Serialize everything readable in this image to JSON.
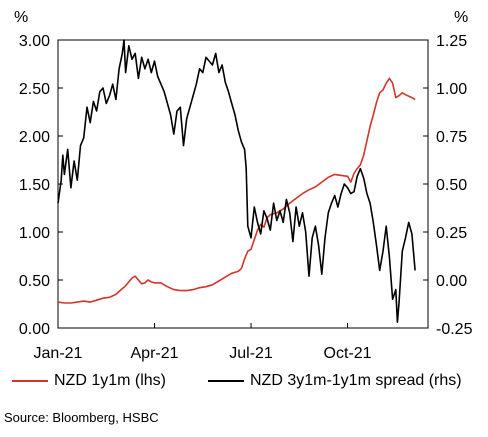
{
  "chart_data": {
    "type": "line",
    "title": "",
    "left_axis": {
      "unit": "%",
      "ylim": [
        0,
        3
      ],
      "ticks": [
        "0.00",
        "0.50",
        "1.00",
        "1.50",
        "2.00",
        "2.50",
        "3.00"
      ]
    },
    "right_axis": {
      "unit": "%",
      "ylim": [
        -0.25,
        1.25
      ],
      "ticks": [
        "-0.25",
        "0.00",
        "0.25",
        "0.50",
        "0.75",
        "1.00",
        "1.25"
      ]
    },
    "x_axis": {
      "range": [
        0,
        11.5
      ],
      "ticks": [
        {
          "label": "Jan-21",
          "pos": 0
        },
        {
          "label": "Apr-21",
          "pos": 3
        },
        {
          "label": "Jul-21",
          "pos": 6
        },
        {
          "label": "Oct-21",
          "pos": 9
        }
      ]
    },
    "grid": false,
    "legend_position": "bottom",
    "series": [
      {
        "name": "NZD 1y1m  (lhs)",
        "axis": "left",
        "color": "#d2362a",
        "points": [
          [
            0.0,
            0.27
          ],
          [
            0.2,
            0.26
          ],
          [
            0.4,
            0.26
          ],
          [
            0.6,
            0.27
          ],
          [
            0.8,
            0.28
          ],
          [
            1.0,
            0.27
          ],
          [
            1.2,
            0.29
          ],
          [
            1.4,
            0.31
          ],
          [
            1.6,
            0.32
          ],
          [
            1.8,
            0.35
          ],
          [
            2.0,
            0.41
          ],
          [
            2.1,
            0.44
          ],
          [
            2.2,
            0.48
          ],
          [
            2.3,
            0.52
          ],
          [
            2.4,
            0.54
          ],
          [
            2.5,
            0.5
          ],
          [
            2.6,
            0.46
          ],
          [
            2.7,
            0.47
          ],
          [
            2.8,
            0.5
          ],
          [
            2.9,
            0.48
          ],
          [
            3.0,
            0.47
          ],
          [
            3.2,
            0.47
          ],
          [
            3.4,
            0.43
          ],
          [
            3.6,
            0.4
          ],
          [
            3.8,
            0.39
          ],
          [
            4.0,
            0.39
          ],
          [
            4.2,
            0.4
          ],
          [
            4.4,
            0.42
          ],
          [
            4.6,
            0.43
          ],
          [
            4.8,
            0.45
          ],
          [
            5.0,
            0.49
          ],
          [
            5.2,
            0.53
          ],
          [
            5.4,
            0.57
          ],
          [
            5.6,
            0.59
          ],
          [
            5.7,
            0.62
          ],
          [
            5.8,
            0.72
          ],
          [
            5.9,
            0.8
          ],
          [
            6.0,
            0.82
          ],
          [
            6.1,
            0.92
          ],
          [
            6.2,
            1.02
          ],
          [
            6.3,
            1.08
          ],
          [
            6.4,
            1.05
          ],
          [
            6.5,
            1.15
          ],
          [
            6.6,
            1.18
          ],
          [
            6.8,
            1.2
          ],
          [
            7.0,
            1.24
          ],
          [
            7.2,
            1.3
          ],
          [
            7.4,
            1.35
          ],
          [
            7.6,
            1.4
          ],
          [
            7.8,
            1.44
          ],
          [
            8.0,
            1.47
          ],
          [
            8.2,
            1.52
          ],
          [
            8.4,
            1.57
          ],
          [
            8.6,
            1.6
          ],
          [
            8.8,
            1.59
          ],
          [
            9.0,
            1.58
          ],
          [
            9.1,
            1.52
          ],
          [
            9.2,
            1.61
          ],
          [
            9.3,
            1.66
          ],
          [
            9.4,
            1.7
          ],
          [
            9.5,
            1.8
          ],
          [
            9.6,
            1.95
          ],
          [
            9.7,
            2.1
          ],
          [
            9.8,
            2.22
          ],
          [
            9.9,
            2.35
          ],
          [
            10.0,
            2.45
          ],
          [
            10.1,
            2.48
          ],
          [
            10.2,
            2.55
          ],
          [
            10.3,
            2.6
          ],
          [
            10.4,
            2.55
          ],
          [
            10.5,
            2.4
          ],
          [
            10.6,
            2.42
          ],
          [
            10.7,
            2.45
          ],
          [
            10.8,
            2.43
          ],
          [
            11.0,
            2.4
          ],
          [
            11.1,
            2.38
          ]
        ]
      },
      {
        "name": "NZD 3y1m-1y1m spread (rhs)",
        "axis": "right",
        "color": "#000000",
        "points": [
          [
            0.0,
            0.4
          ],
          [
            0.1,
            0.52
          ],
          [
            0.15,
            0.65
          ],
          [
            0.2,
            0.55
          ],
          [
            0.3,
            0.68
          ],
          [
            0.4,
            0.48
          ],
          [
            0.5,
            0.62
          ],
          [
            0.6,
            0.52
          ],
          [
            0.7,
            0.7
          ],
          [
            0.8,
            0.74
          ],
          [
            0.9,
            0.9
          ],
          [
            1.0,
            0.82
          ],
          [
            1.1,
            0.93
          ],
          [
            1.2,
            0.88
          ],
          [
            1.3,
            0.98
          ],
          [
            1.4,
            1.0
          ],
          [
            1.5,
            0.92
          ],
          [
            1.6,
            0.96
          ],
          [
            1.7,
            1.02
          ],
          [
            1.8,
            0.94
          ],
          [
            1.9,
            1.1
          ],
          [
            2.0,
            1.18
          ],
          [
            2.05,
            1.25
          ],
          [
            2.1,
            1.08
          ],
          [
            2.2,
            1.22
          ],
          [
            2.3,
            1.15
          ],
          [
            2.4,
            1.18
          ],
          [
            2.5,
            1.05
          ],
          [
            2.6,
            1.16
          ],
          [
            2.7,
            1.1
          ],
          [
            2.8,
            1.15
          ],
          [
            2.9,
            1.08
          ],
          [
            3.0,
            1.14
          ],
          [
            3.1,
            1.06
          ],
          [
            3.2,
            1.02
          ],
          [
            3.3,
            0.98
          ],
          [
            3.4,
            0.92
          ],
          [
            3.5,
            0.86
          ],
          [
            3.6,
            0.76
          ],
          [
            3.7,
            0.88
          ],
          [
            3.8,
            0.9
          ],
          [
            3.9,
            0.7
          ],
          [
            4.0,
            0.84
          ],
          [
            4.1,
            0.9
          ],
          [
            4.2,
            0.96
          ],
          [
            4.3,
            1.02
          ],
          [
            4.4,
            1.1
          ],
          [
            4.5,
            1.08
          ],
          [
            4.6,
            1.16
          ],
          [
            4.7,
            1.14
          ],
          [
            4.8,
            1.12
          ],
          [
            4.9,
            1.18
          ],
          [
            5.0,
            1.08
          ],
          [
            5.1,
            1.12
          ],
          [
            5.2,
            1.03
          ],
          [
            5.3,
            0.98
          ],
          [
            5.4,
            0.92
          ],
          [
            5.5,
            0.86
          ],
          [
            5.6,
            0.78
          ],
          [
            5.7,
            0.72
          ],
          [
            5.8,
            0.68
          ],
          [
            5.85,
            0.58
          ],
          [
            5.9,
            0.28
          ],
          [
            6.0,
            0.22
          ],
          [
            6.1,
            0.38
          ],
          [
            6.2,
            0.3
          ],
          [
            6.3,
            0.24
          ],
          [
            6.4,
            0.36
          ],
          [
            6.5,
            0.32
          ],
          [
            6.6,
            0.26
          ],
          [
            6.7,
            0.4
          ],
          [
            6.8,
            0.31
          ],
          [
            6.9,
            0.36
          ],
          [
            7.0,
            0.3
          ],
          [
            7.1,
            0.42
          ],
          [
            7.2,
            0.35
          ],
          [
            7.3,
            0.2
          ],
          [
            7.4,
            0.38
          ],
          [
            7.5,
            0.28
          ],
          [
            7.6,
            0.35
          ],
          [
            7.7,
            0.25
          ],
          [
            7.8,
            0.02
          ],
          [
            7.9,
            0.22
          ],
          [
            8.0,
            0.28
          ],
          [
            8.1,
            0.18
          ],
          [
            8.2,
            0.03
          ],
          [
            8.3,
            0.22
          ],
          [
            8.4,
            0.35
          ],
          [
            8.5,
            0.4
          ],
          [
            8.6,
            0.44
          ],
          [
            8.7,
            0.38
          ],
          [
            8.8,
            0.45
          ],
          [
            8.9,
            0.5
          ],
          [
            9.0,
            0.48
          ],
          [
            9.1,
            0.45
          ],
          [
            9.2,
            0.46
          ],
          [
            9.3,
            0.54
          ],
          [
            9.4,
            0.58
          ],
          [
            9.5,
            0.53
          ],
          [
            9.6,
            0.45
          ],
          [
            9.7,
            0.4
          ],
          [
            9.8,
            0.3
          ],
          [
            9.9,
            0.18
          ],
          [
            10.0,
            0.05
          ],
          [
            10.1,
            0.15
          ],
          [
            10.2,
            0.28
          ],
          [
            10.3,
            0.12
          ],
          [
            10.4,
            -0.1
          ],
          [
            10.5,
            -0.05
          ],
          [
            10.55,
            -0.22
          ],
          [
            10.6,
            -0.12
          ],
          [
            10.7,
            0.15
          ],
          [
            10.8,
            0.22
          ],
          [
            10.9,
            0.3
          ],
          [
            11.0,
            0.24
          ],
          [
            11.1,
            0.05
          ]
        ]
      }
    ]
  },
  "source": "Source:  Bloomberg, HSBC"
}
